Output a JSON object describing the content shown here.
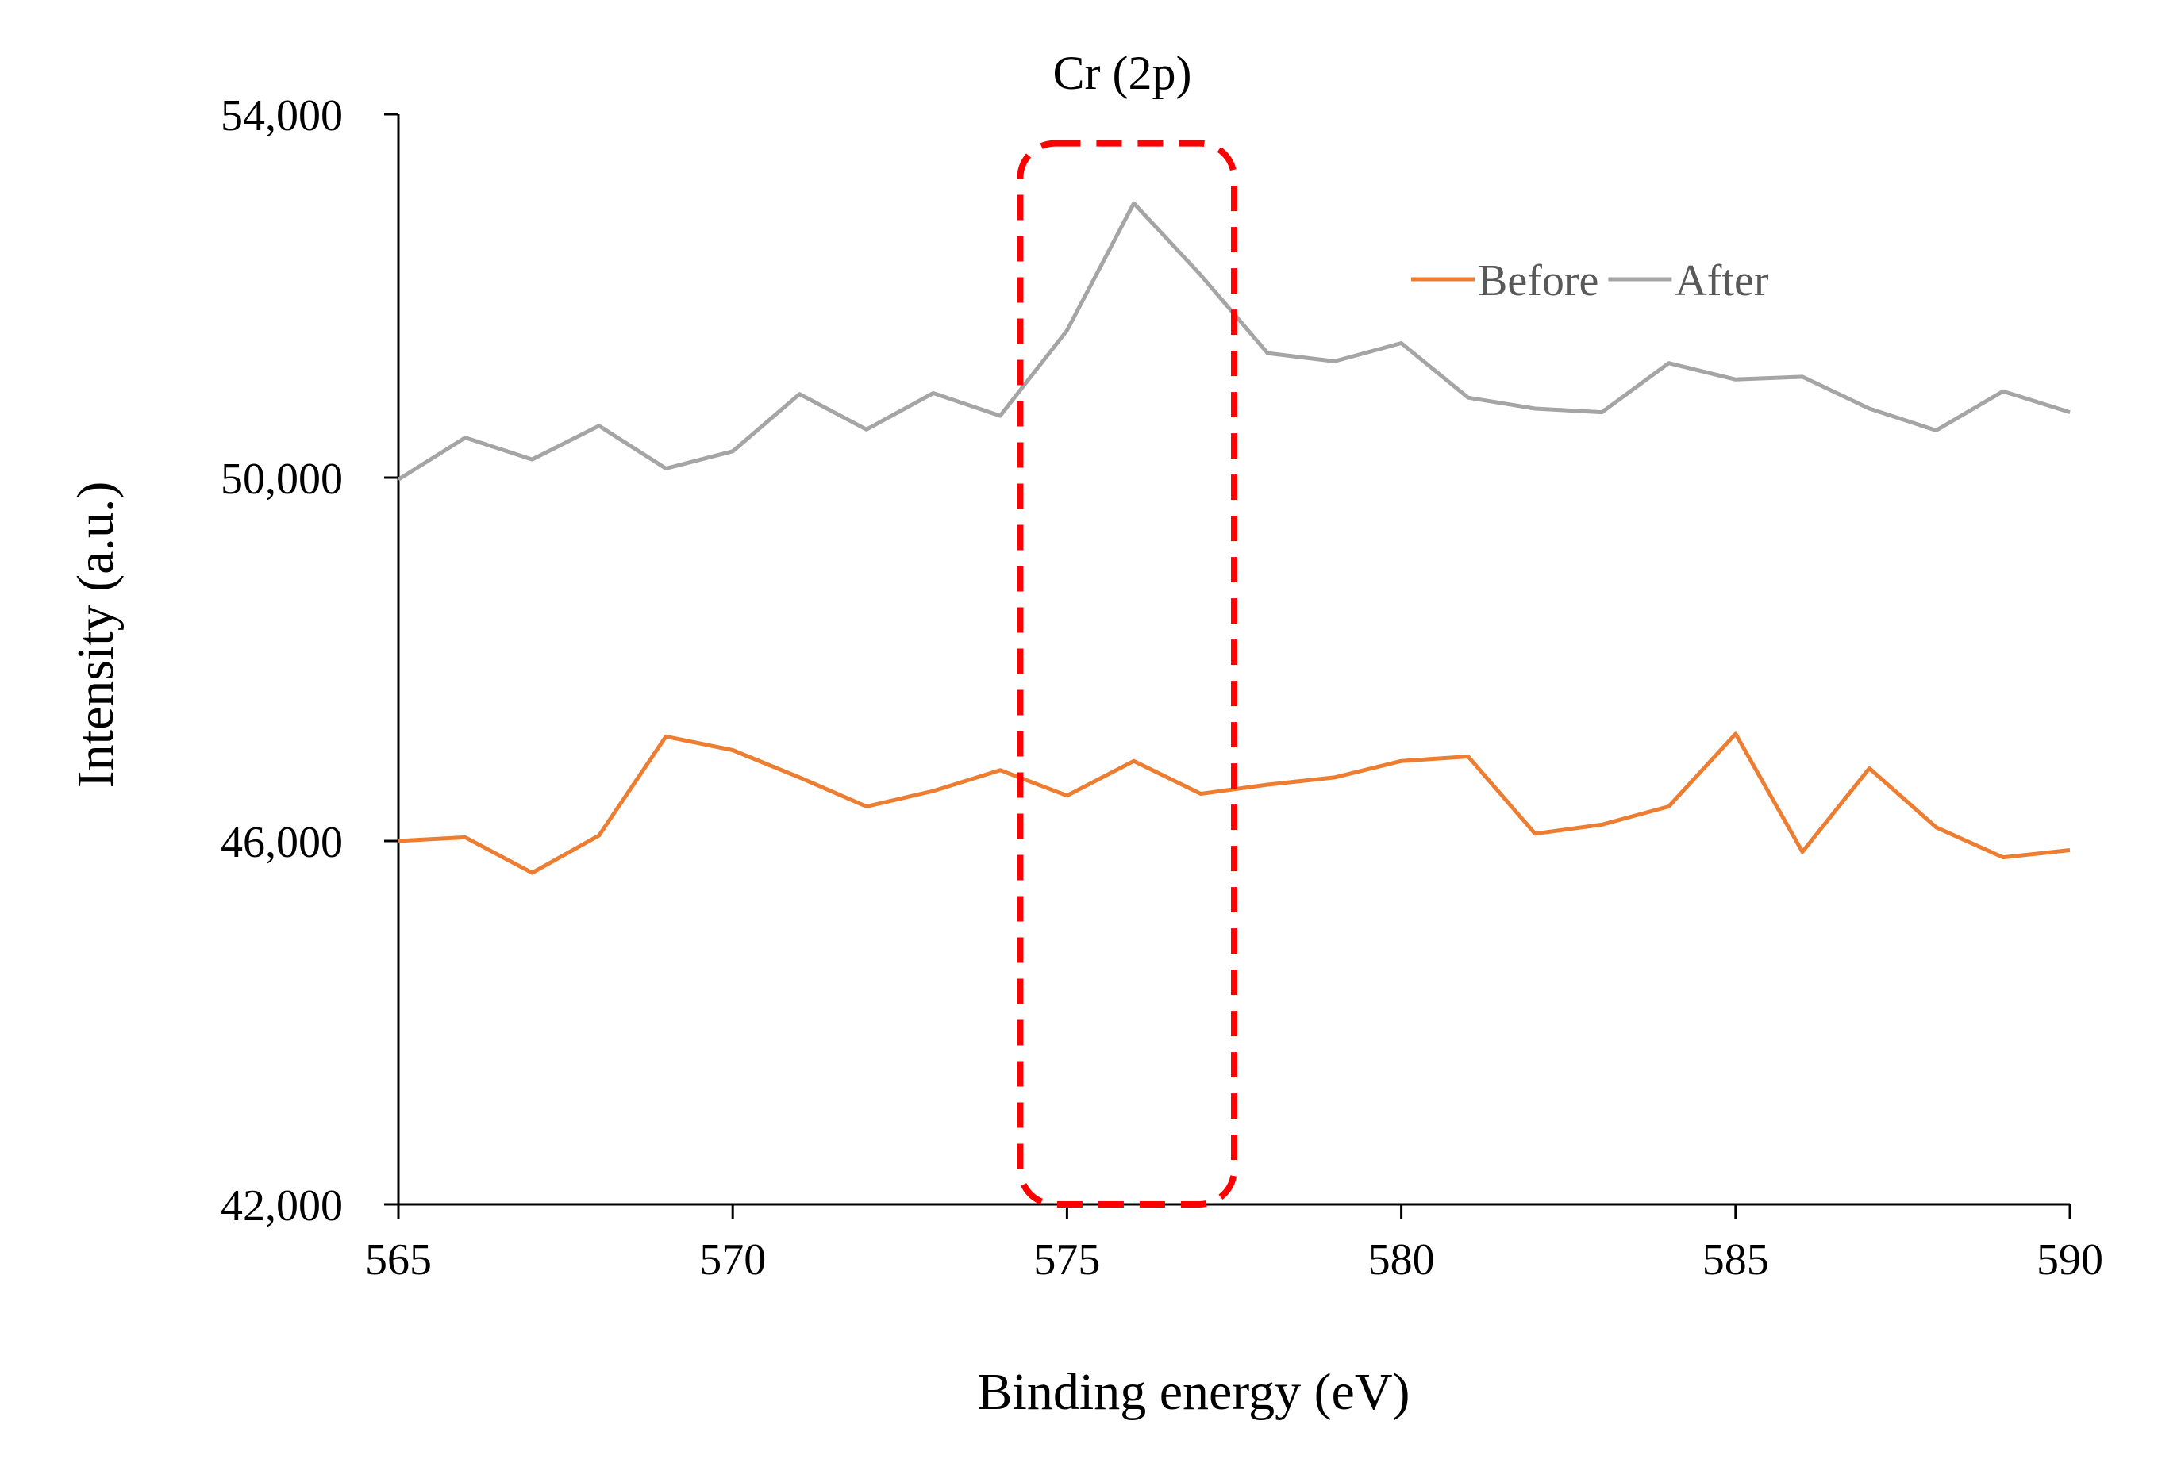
{
  "chart_data": {
    "type": "line",
    "title": "Cr (2p)",
    "xlabel": "Binding energy (eV)",
    "ylabel": "Intensity (a.u.)",
    "xlim": [
      565,
      590
    ],
    "ylim": [
      42000,
      54000
    ],
    "x_ticks": [
      565,
      570,
      575,
      580,
      585,
      590
    ],
    "x_tick_labels": [
      "565",
      "570",
      "575",
      "580",
      "585",
      "590"
    ],
    "y_ticks": [
      42000,
      46000,
      50000,
      54000
    ],
    "y_tick_labels": [
      "42,000",
      "46,000",
      "50,000",
      "54,000"
    ],
    "grid": false,
    "legend_position": "top-right",
    "x": [
      565,
      566,
      567,
      568,
      569,
      570,
      571,
      572,
      573,
      574,
      575,
      576,
      577,
      578,
      579,
      580,
      581,
      582,
      583,
      584,
      585,
      586,
      587,
      588,
      589,
      590
    ],
    "series": [
      {
        "name": "Before",
        "color": "#ED7D31",
        "values": [
          46000,
          46040,
          45650,
          46060,
          47150,
          47000,
          46700,
          46380,
          46550,
          46780,
          46500,
          46880,
          46520,
          46620,
          46700,
          46880,
          46930,
          46080,
          46180,
          46380,
          47180,
          45880,
          46800,
          46150,
          45820,
          45900
        ]
      },
      {
        "name": "After",
        "color": "#A5A5A5",
        "values": [
          49980,
          50440,
          50200,
          50570,
          50100,
          50290,
          50920,
          50530,
          50930,
          50680,
          51620,
          53020,
          52230,
          51370,
          51280,
          51480,
          50880,
          50760,
          50720,
          51260,
          51080,
          51110,
          50760,
          50520,
          50950,
          50720
        ]
      }
    ],
    "annotations": [
      {
        "type": "highlight-box",
        "style": "dashed",
        "color": "#FF0000",
        "x_range": [
          574.3,
          577.5
        ],
        "y_range": [
          42000,
          53680
        ]
      }
    ]
  }
}
